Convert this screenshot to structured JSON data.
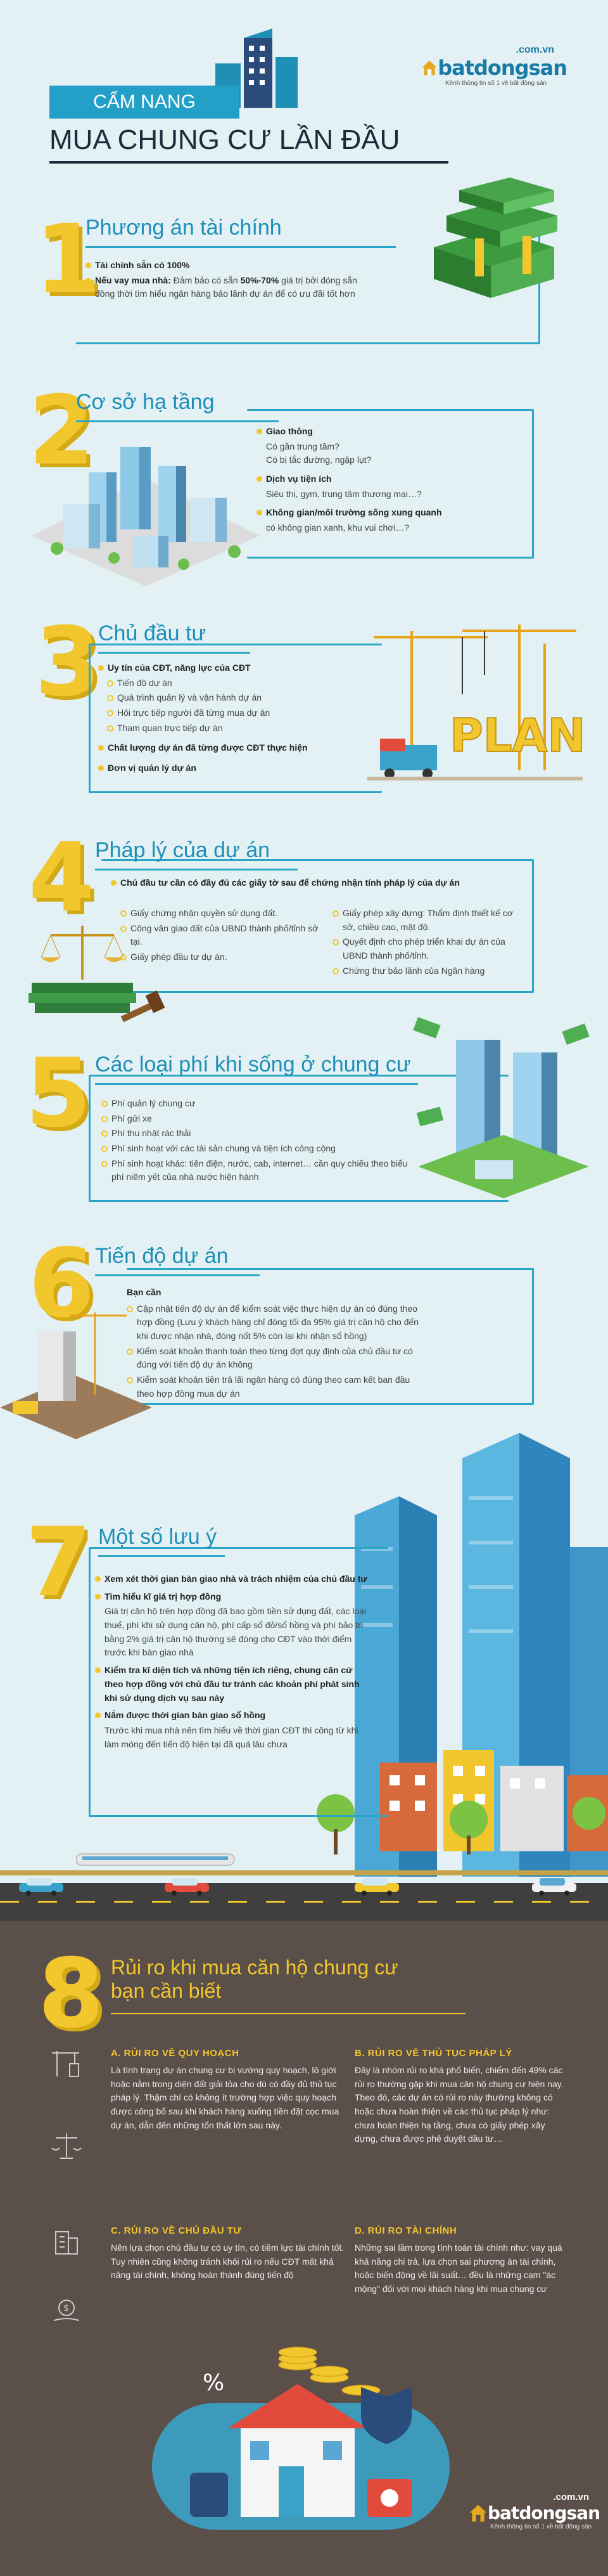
{
  "header": {
    "ribbon": "CẨM NANG",
    "title": "MUA CHUNG CƯ LẦN ĐẦU",
    "logo_domain": ".com.vn",
    "logo_name": "batdongsan",
    "logo_tagline": "Kênh thông tin số 1 về bất động sản"
  },
  "s1": {
    "num": "1",
    "title": "Phương án tài chính",
    "items": [
      {
        "label": "Tài chính sẵn có 100%"
      },
      {
        "label": "Nếu vay mua nhà:",
        "text1": " Đảm bảo có sẵn ",
        "highlight": "50%-70%",
        "text2": "giá trị bởi đóng sẵn đồng thời tìm hiểu ngân hàng bảo lãnh dự án để có ưu đãi tốt hơn"
      }
    ]
  },
  "s2": {
    "num": "2",
    "title": "Cơ sở hạ tầng",
    "groups": [
      {
        "head": "Giao thông",
        "lines": [
          "Có gần trung tâm?",
          "Có bị tắc đường, ngập lụt?"
        ]
      },
      {
        "head": "Dịch vụ tiện ích",
        "lines": [
          "Siêu thị, gym, trung tâm thương mại…?"
        ]
      },
      {
        "head": "Không gian/môi trường sống xung quanh",
        "lines": [
          "có không gian xanh, khu vui chơi…?"
        ]
      }
    ]
  },
  "s3": {
    "num": "3",
    "title": "Chủ đầu tư",
    "head1": "Uy tín của CĐT, năng lực của CĐT",
    "subs": [
      "Tiến độ dự án",
      "Quá trình quản lý và vận hành dự án",
      "Hỏi trực tiếp người đã từng mua dự án",
      "Tham quan trực tiếp dự án"
    ],
    "head2": "Chất lượng dự án đã từng được CĐT thực hiện",
    "head3": "Đơn vị quản lý dự án",
    "sign": "PLAN"
  },
  "s4": {
    "num": "4",
    "title": "Pháp lý của dự án",
    "lead": "Chủ đầu tư cần có đầy đủ các giấy tờ sau để chứng nhận tính pháp lý của dự án",
    "left": [
      "Giấy chứng nhận quyền sử dụng đất.",
      "Công văn giao đất của UBND thành phố/tỉnh sở tại.",
      "Giấy phép đầu tư dự án."
    ],
    "right": [
      "Giấy phép xây dựng: Thẩm định thiết kế cơ sở, chiều cao, mật độ.",
      "Quyết định cho phép triển khai dự án của UBND thành phố/tỉnh.",
      "Chứng thư bảo lãnh của Ngân hàng"
    ]
  },
  "s5": {
    "num": "5",
    "title": "Các loại phí khi sống ở chung cư",
    "items": [
      "Phí quản lý chung cư",
      "Phí gửi xe",
      "Phí thu nhặt rác thải",
      "Phí sinh hoạt với các tài sản chung và tiện ích công cộng",
      "Phí sinh hoạt khác: tiền điện, nước, cab, internet… cần quy chiếu theo biểu phí niêm yết của nhà nước hiện hành"
    ]
  },
  "s6": {
    "num": "6",
    "title": "Tiến độ dự án",
    "head": "Bạn cần",
    "items": [
      "Cập nhật tiến độ dự án để kiểm soát việc thực hiện dự án có đúng theo hợp đồng (Lưu ý khách hàng chỉ đóng tối đa 95% giá trị căn hộ cho đến khi được nhận nhà, đóng nốt 5% còn lại khi nhận sổ hồng)",
      "Kiểm soát khoản thanh toán theo từng đợt quy định của chủ đầu tư có đúng với tiến độ dự án không",
      "Kiểm soát khoản tiền trả lãi ngân hàng có đúng theo cam kết ban đầu theo hợp đồng mua dự án"
    ]
  },
  "s7": {
    "num": "7",
    "title": "Một số lưu ý",
    "items": [
      {
        "head": "Xem xét thời gian bàn giao nhà và trách nhiệm của chủ đầu tư",
        "body": ""
      },
      {
        "head": "Tìm hiểu kĩ giá trị hợp đồng",
        "body": "Giá trị căn hộ trên hợp đồng đã bao gồm tiền sử dụng đất, các loại thuế, phí khi sử dụng căn hộ, phí cấp sổ đỏ/sổ hồng và phí bảo trì bằng 2% giá trị căn hộ thường sẽ đóng cho CĐT vào thời điểm trước khi bàn giao nhà"
      },
      {
        "head": "Kiểm tra kĩ diện tích và những tiện ích riêng, chung căn cứ theo hợp đồng với chủ đầu tư tránh các khoản phí phát sinh khi sử dụng dịch vụ sau này",
        "body": ""
      },
      {
        "head": "Nắm được thời gian bàn giao sổ hồng",
        "body": "Trước khi mua nhà nên tìm hiểu về thời gian CĐT thi công từ khi làm móng đến tiến độ hiện tại đã quá lâu chưa"
      }
    ]
  },
  "s8": {
    "num": "8",
    "title_line1": "Rủi ro khi mua căn hộ chung cư",
    "title_line2": "bạn cần biết",
    "cards": [
      {
        "head": "A.  RỦI RO VỀ QUY HOẠCH",
        "body": "Là tình trạng dự án chung cư bị vướng quy hoạch, lô giới hoặc nằm trong diện đất giải tỏa cho dù có đầy đủ thủ tục pháp lý. Thậm chí có không ít trường hợp việc quy hoạch được công bố sau khi khách hàng xuống tiền đặt cọc mua dự án, dẫn đến những tổn thất lớn sau này."
      },
      {
        "head": "B.  RỦI RO VỀ THỦ TỤC PHÁP LÝ",
        "body": "Đây là nhóm rủi ro khá phổ biến, chiếm đến 49% các rủi ro thường gặp khi mua căn hộ chung cư hiện nay. Theo đó, các dự án có rủi ro này thường không có hoặc chưa hoàn thiện về các thủ tục pháp lý như: chưa hoàn thiện hạ tầng, chưa có giấy phép xây dựng, chưa được phê duyệt dầu tư…"
      },
      {
        "head": "C.  RỦI RO VỀ CHỦ ĐẦU TƯ",
        "body": "Nên lựa chọn chủ đầu tư có uy tín, có tiềm lực tài chính tốt. Tuy nhiên cũng không tránh khỏi rủi ro nếu CĐT mất khả năng tài chính, không hoàn thành đúng tiến độ"
      },
      {
        "head": "D.  RỦI RO TÀI CHÍNH",
        "body": "Những sai lầm trong tính toán tài chính như: vay quá khả năng chi trả, lựa chọn sai phương án tài chính, hoặc biến động về lãi suất… đều là những cạm \"ác mộng\" đối với mọi khách hàng khi mua chung cư"
      }
    ]
  },
  "footer": {
    "logo_domain": ".com.vn",
    "logo_name": "batdongsan",
    "logo_tagline": "Kênh thông tin số 1 về bất động sản"
  },
  "colors": {
    "accent_blue": "#2aa6c7",
    "accent_yellow": "#f2c62d",
    "dark_bg": "#5b4f4a",
    "bg": "#e3f1f4"
  }
}
